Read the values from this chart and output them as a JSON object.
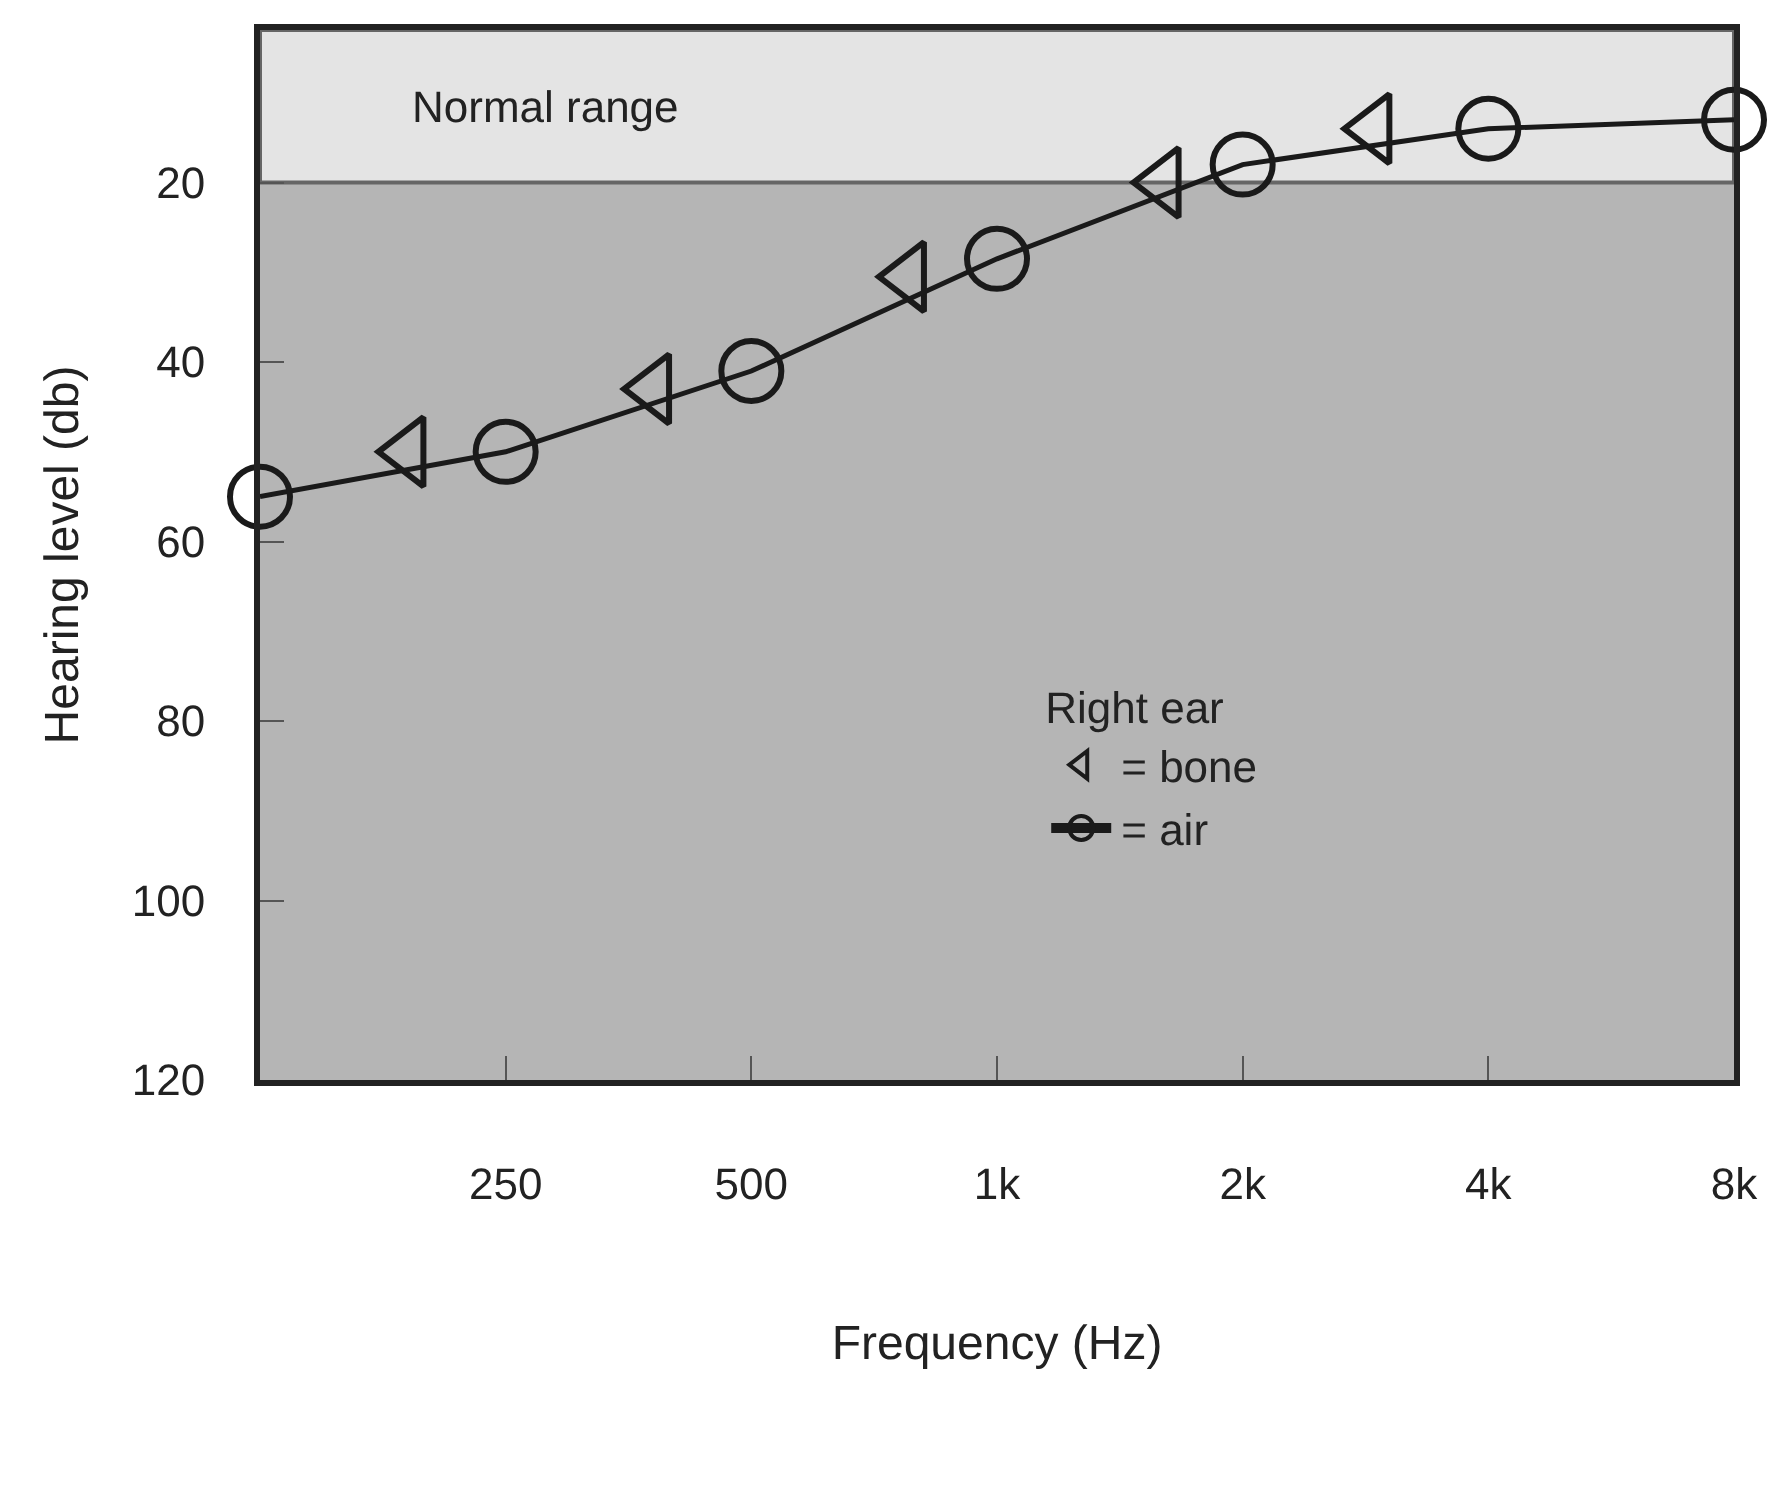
{
  "chart_data": {
    "type": "scatter",
    "xlabel": "Frequency (Hz)",
    "ylabel": "Hearing level (db)",
    "legend_title": "Right ear",
    "log": "x",
    "xlim": [
      125,
      8000
    ],
    "xticks": [
      {
        "value": 250,
        "label": "250"
      },
      {
        "value": 500,
        "label": "500"
      },
      {
        "value": 1000,
        "label": "1k"
      },
      {
        "value": 2000,
        "label": "2k"
      },
      {
        "value": 4000,
        "label": "4k"
      },
      {
        "value": 8000,
        "label": "8k"
      }
    ],
    "ylim": [
      120,
      3
    ],
    "yticks": [
      20,
      40,
      60,
      80,
      100,
      120
    ],
    "grid": false,
    "legend": "bottom right",
    "bands": [
      {
        "axis": "y",
        "from": 3,
        "to": 20,
        "label": "Normal range",
        "color": "#e4e4e4"
      }
    ],
    "series": [
      {
        "name": "= bone",
        "color": "#1a1a1a",
        "marker": "triangle",
        "line_style": "none",
        "x": [
          190,
          380,
          780,
          1600,
          2900
        ],
        "values": [
          50,
          43,
          30.5,
          20,
          14
        ]
      },
      {
        "name": "= air",
        "color": "#1a1a1a",
        "type": "line",
        "marker": "circle",
        "line_style": "solid",
        "x": [
          125,
          250,
          500,
          1000,
          2000,
          4000,
          8000
        ],
        "values": [
          55,
          50,
          41,
          28.5,
          18,
          14,
          13
        ]
      }
    ]
  }
}
